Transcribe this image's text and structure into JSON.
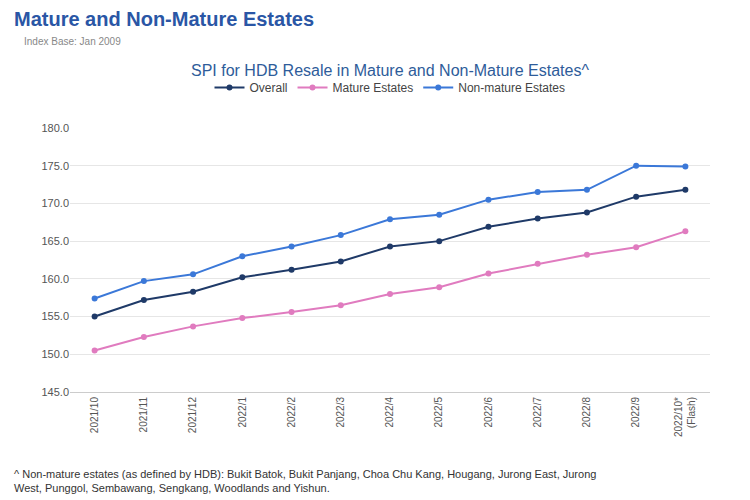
{
  "chart_data": {
    "type": "line",
    "title": "Mature and Non-Mature Estates",
    "subtitle": "Index Base: Jan 2009",
    "chart_title": "SPI for HDB Resale in Mature and Non-Mature Estates^",
    "footnote": "^ Non-mature estates (as defined by HDB): Bukit Batok, Bukit Panjang, Choa Chu Kang, Hougang, Jurong East, Jurong West, Punggol, Sembawang, Sengkang, Woodlands and Yishun.",
    "categories": [
      "2021/10",
      "2021/11",
      "2021/12",
      "2022/1",
      "2022/2",
      "2022/3",
      "2022/4",
      "2022/5",
      "2022/6",
      "2022/7",
      "2022/8",
      "2022/9",
      "2022/10*\n(Flash)"
    ],
    "series": [
      {
        "name": "Overall",
        "color": "#1f3a68",
        "values": [
          155.0,
          157.2,
          158.3,
          160.2,
          161.2,
          162.3,
          164.3,
          165.0,
          166.9,
          168.0,
          168.8,
          170.9,
          171.8
        ]
      },
      {
        "name": "Mature Estates",
        "color": "#e07bbf",
        "values": [
          150.5,
          152.3,
          153.7,
          154.8,
          155.6,
          156.5,
          158.0,
          158.9,
          160.7,
          162.0,
          163.2,
          164.2,
          166.3
        ]
      },
      {
        "name": "Non-mature Estates",
        "color": "#3b78d8",
        "values": [
          157.4,
          159.7,
          160.6,
          163.0,
          164.3,
          165.8,
          167.9,
          168.5,
          170.5,
          171.5,
          171.8,
          175.0,
          174.9
        ]
      }
    ],
    "ylim": [
      145,
      180
    ],
    "yticks": [
      {
        "value": 145,
        "label": "145.0"
      },
      {
        "value": 150,
        "label": "150.0"
      },
      {
        "value": 155,
        "label": "155.0"
      },
      {
        "value": 160,
        "label": "160.0"
      },
      {
        "value": 165,
        "label": "165.0"
      },
      {
        "value": 170,
        "label": "170.0"
      },
      {
        "value": 175,
        "label": "175.0"
      },
      {
        "value": 180,
        "label": "180.0"
      }
    ],
    "grid": true,
    "legend": "top",
    "marker": "circle",
    "line_style": "solid"
  }
}
